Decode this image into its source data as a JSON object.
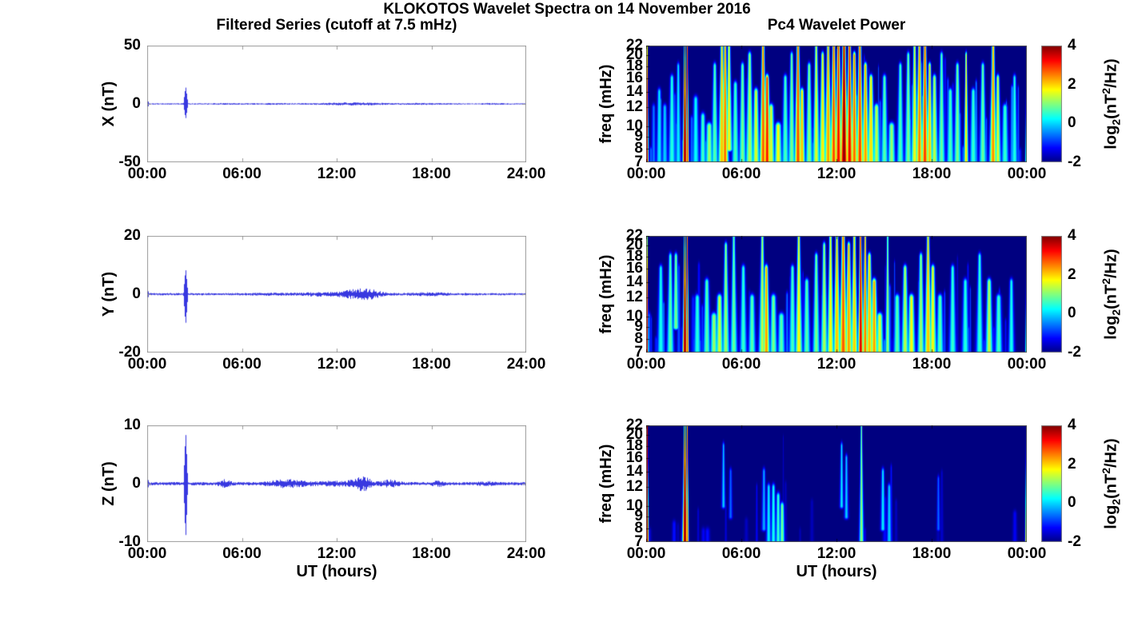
{
  "figure": {
    "title": "KLOKOTOS Wavelet Spectra on 14 November 2016",
    "left_subtitle": "Filtered Series (cutoff at 7.5 mHz)",
    "right_subtitle": "Pc4 Wavelet Power",
    "xlabel": "UT (hours)",
    "background_color": "#ffffff",
    "series_line_color": "#2222dd",
    "axis_box_color": "#999999",
    "heatmap_min_color": "#00008f"
  },
  "chart_data": [
    {
      "id": "x-filtered",
      "type": "line",
      "panel": "left-top",
      "ylabel": "X (nT)",
      "ylim": [
        -50,
        50
      ],
      "yticks": [
        50,
        0,
        -50
      ],
      "x_range_hours": [
        0,
        24
      ],
      "xticks": [
        {
          "t": 0,
          "label": "00:00"
        },
        {
          "t": 6,
          "label": "06:00"
        },
        {
          "t": 12,
          "label": "12:00"
        },
        {
          "t": 18,
          "label": "18:00"
        },
        {
          "t": 24,
          "label": "24:00"
        }
      ],
      "noise_base": 0.55,
      "seed": 3,
      "noise_bumps": [
        {
          "t": 13,
          "w": 3,
          "a": 0.8
        },
        {
          "t": 8.2,
          "w": 2,
          "a": 0.25
        },
        {
          "t": 17.5,
          "w": 2,
          "a": 0.3
        },
        {
          "t": 21.8,
          "w": 1,
          "a": 0.3
        },
        {
          "t": 4.8,
          "w": 1.5,
          "a": 0.2
        }
      ],
      "spikes": [
        {
          "t": 2.42,
          "peak": 15,
          "trough": -13,
          "w": 0.3
        },
        {
          "t": 0.06,
          "peak": 2.5,
          "trough": -2.5,
          "w": 0.1
        }
      ]
    },
    {
      "id": "y-filtered",
      "type": "line",
      "panel": "left-middle",
      "ylabel": "Y (nT)",
      "ylim": [
        -20,
        20
      ],
      "yticks": [
        20,
        0,
        -20
      ],
      "x_range_hours": [
        0,
        24
      ],
      "xticks": [
        {
          "t": 0,
          "label": "00:00"
        },
        {
          "t": 6,
          "label": "06:00"
        },
        {
          "t": 12,
          "label": "12:00"
        },
        {
          "t": 18,
          "label": "18:00"
        },
        {
          "t": 24,
          "label": "24:00"
        }
      ],
      "noise_base": 0.4,
      "seed": 5,
      "noise_bumps": [
        {
          "t": 13.7,
          "w": 1.4,
          "a": 1.6
        },
        {
          "t": 12.5,
          "w": 2.5,
          "a": 0.5
        },
        {
          "t": 8,
          "w": 2,
          "a": 0.2
        },
        {
          "t": 17.8,
          "w": 2,
          "a": 0.3
        },
        {
          "t": 10.5,
          "w": 1,
          "a": 0.25
        }
      ],
      "spikes": [
        {
          "t": 2.42,
          "peak": 8.8,
          "trough": -10.5,
          "w": 0.3
        },
        {
          "t": 0.06,
          "peak": 1.2,
          "trough": -1.2,
          "w": 0.1
        }
      ]
    },
    {
      "id": "z-filtered",
      "type": "line",
      "panel": "left-bottom",
      "ylabel": "Z (nT)",
      "ylim": [
        -10,
        10
      ],
      "yticks": [
        10,
        0,
        -10
      ],
      "x_range_hours": [
        0,
        24
      ],
      "xticks": [
        {
          "t": 0,
          "label": "00:00"
        },
        {
          "t": 6,
          "label": "06:00"
        },
        {
          "t": 12,
          "label": "12:00"
        },
        {
          "t": 18,
          "label": "18:00"
        },
        {
          "t": 24,
          "label": "24:00"
        }
      ],
      "noise_base": 0.28,
      "seed": 9,
      "noise_bumps": [
        {
          "t": 4.9,
          "w": 0.5,
          "a": 0.5
        },
        {
          "t": 8.8,
          "w": 1.6,
          "a": 0.5
        },
        {
          "t": 13.6,
          "w": 0.8,
          "a": 1.0
        },
        {
          "t": 15.4,
          "w": 0.8,
          "a": 0.45
        },
        {
          "t": 12.1,
          "w": 2.5,
          "a": 0.25
        },
        {
          "t": 18.4,
          "w": 0.6,
          "a": 0.3
        },
        {
          "t": 21.5,
          "w": 0.8,
          "a": 0.2
        }
      ],
      "spikes": [
        {
          "t": 2.42,
          "peak": 9,
          "trough": -9.5,
          "w": 0.28
        },
        {
          "t": 0.06,
          "peak": 0.8,
          "trough": -0.8,
          "w": 0.08
        }
      ]
    },
    {
      "id": "x-wavelet-power",
      "type": "heatmap",
      "panel": "right-top",
      "ylabel": "freq (mHz)",
      "yscale": "log",
      "freq_range_mhz": [
        7,
        22
      ],
      "yticks": [
        22,
        20,
        18,
        16,
        14,
        12,
        10,
        9,
        8,
        7
      ],
      "x_range_hours": [
        0,
        24
      ],
      "xticks": [
        {
          "t": 0,
          "label": "00:00"
        },
        {
          "t": 6,
          "label": "06:00"
        },
        {
          "t": 12,
          "label": "12:00"
        },
        {
          "t": 18,
          "label": "18:00"
        },
        {
          "t": 24,
          "label": "00:00"
        }
      ],
      "clim": [
        -2,
        4
      ],
      "colormap": "jet",
      "colorbar": {
        "ticks": [
          4,
          2,
          0,
          -2
        ],
        "label_pre": "log",
        "label_sub": "2",
        "label_mid": "(nT",
        "label_sup": "2",
        "label_post": "/Hz)"
      },
      "streaks": [
        [
          0.03,
          0.12,
          7,
          22,
          3.6
        ],
        [
          0.45,
          0.2,
          7,
          12,
          -0.5
        ],
        [
          0.8,
          0.25,
          7,
          14,
          0.2
        ],
        [
          1.15,
          0.25,
          7,
          12,
          0.0
        ],
        [
          1.6,
          0.3,
          7,
          16,
          0.5
        ],
        [
          2.0,
          0.25,
          7,
          18,
          0.2
        ],
        [
          2.42,
          0.18,
          7,
          22,
          4.2
        ],
        [
          2.58,
          0.1,
          7,
          22,
          3.2
        ],
        [
          3.1,
          0.3,
          7,
          13,
          0.3
        ],
        [
          3.55,
          0.25,
          7,
          11,
          0.7
        ],
        [
          3.95,
          0.3,
          7,
          10,
          1.2
        ],
        [
          4.3,
          0.3,
          7,
          18,
          0.8
        ],
        [
          4.75,
          0.3,
          7,
          22,
          2.2
        ],
        [
          4.95,
          0.28,
          7,
          22,
          2.7
        ],
        [
          5.2,
          0.3,
          8,
          22,
          1.8
        ],
        [
          5.6,
          0.3,
          7,
          15,
          0.7
        ],
        [
          6.05,
          0.3,
          7,
          18,
          1.0
        ],
        [
          6.5,
          0.35,
          7,
          20,
          1.3
        ],
        [
          6.9,
          0.3,
          7,
          14,
          1.6
        ],
        [
          7.35,
          0.3,
          7,
          22,
          2.8
        ],
        [
          7.6,
          0.28,
          7,
          16,
          3.2
        ],
        [
          7.85,
          0.3,
          7,
          12,
          1.6
        ],
        [
          8.3,
          0.3,
          7,
          10,
          1.8
        ],
        [
          8.75,
          0.3,
          7,
          16,
          0.7
        ],
        [
          9.15,
          0.3,
          7,
          20,
          1.0
        ],
        [
          9.55,
          0.3,
          7,
          22,
          2.9
        ],
        [
          9.8,
          0.25,
          7,
          14,
          2.2
        ],
        [
          10.25,
          0.3,
          7,
          18,
          1.1
        ],
        [
          10.7,
          0.3,
          7,
          22,
          1.6
        ],
        [
          11.1,
          0.3,
          7,
          20,
          1.9
        ],
        [
          11.45,
          0.3,
          7,
          22,
          2.4
        ],
        [
          11.8,
          0.3,
          7,
          22,
          2.9
        ],
        [
          12.1,
          0.3,
          7,
          22,
          3.3
        ],
        [
          12.45,
          0.35,
          7,
          22,
          4.0
        ],
        [
          12.8,
          0.3,
          7,
          22,
          3.4
        ],
        [
          13.1,
          0.3,
          7,
          20,
          2.7
        ],
        [
          13.45,
          0.3,
          7,
          22,
          3.0
        ],
        [
          13.8,
          0.3,
          7,
          18,
          2.4
        ],
        [
          14.15,
          0.3,
          7,
          16,
          2.0
        ],
        [
          14.5,
          0.3,
          7,
          12,
          1.4
        ],
        [
          15.0,
          0.3,
          7,
          16,
          0.8
        ],
        [
          15.45,
          0.3,
          7,
          10,
          1.2
        ],
        [
          16.0,
          0.3,
          7,
          18,
          0.7
        ],
        [
          16.5,
          0.3,
          7,
          20,
          1.0
        ],
        [
          16.9,
          0.3,
          7,
          22,
          1.7
        ],
        [
          17.2,
          0.3,
          7,
          22,
          2.6
        ],
        [
          17.55,
          0.3,
          7,
          22,
          3.0
        ],
        [
          17.85,
          0.25,
          7,
          18,
          2.2
        ],
        [
          18.15,
          0.3,
          7,
          16,
          1.4
        ],
        [
          18.6,
          0.3,
          7,
          20,
          0.9
        ],
        [
          19.15,
          0.3,
          7,
          14,
          0.7
        ],
        [
          19.6,
          0.3,
          7,
          18,
          1.0
        ],
        [
          20.15,
          0.18,
          7,
          20,
          2.0
        ],
        [
          20.6,
          0.3,
          7,
          14,
          0.6
        ],
        [
          21.2,
          0.3,
          7,
          18,
          0.9
        ],
        [
          21.85,
          0.3,
          7,
          22,
          2.5
        ],
        [
          22.15,
          0.25,
          7,
          16,
          1.6
        ],
        [
          22.6,
          0.3,
          7,
          12,
          0.6
        ],
        [
          23.2,
          0.25,
          7,
          16,
          0.5
        ],
        [
          23.97,
          0.1,
          7,
          22,
          3.8
        ]
      ],
      "noise_streaks": {
        "count": 90,
        "p_min": -1.4,
        "p_max": -0.2,
        "seed": 7
      }
    },
    {
      "id": "y-wavelet-power",
      "type": "heatmap",
      "panel": "right-middle",
      "ylabel": "freq (mHz)",
      "yscale": "log",
      "freq_range_mhz": [
        7,
        22
      ],
      "yticks": [
        22,
        20,
        18,
        16,
        14,
        12,
        10,
        9,
        8,
        7
      ],
      "x_range_hours": [
        0,
        24
      ],
      "xticks": [
        {
          "t": 0,
          "label": "00:00"
        },
        {
          "t": 6,
          "label": "06:00"
        },
        {
          "t": 12,
          "label": "12:00"
        },
        {
          "t": 18,
          "label": "18:00"
        },
        {
          "t": 24,
          "label": "00:00"
        }
      ],
      "clim": [
        -2,
        4
      ],
      "colormap": "jet",
      "colorbar": {
        "ticks": [
          4,
          2,
          0,
          -2
        ],
        "label_pre": "log",
        "label_sub": "2",
        "label_mid": "(nT",
        "label_sup": "2",
        "label_post": "/Hz)"
      },
      "streaks": [
        [
          0.03,
          0.1,
          7,
          22,
          3.6
        ],
        [
          0.9,
          0.3,
          7,
          16,
          0.4
        ],
        [
          1.5,
          0.3,
          7,
          18,
          0.8
        ],
        [
          1.85,
          0.3,
          9,
          18,
          1.0
        ],
        [
          2.42,
          0.18,
          7,
          22,
          4.2
        ],
        [
          2.58,
          0.1,
          7,
          22,
          3.0
        ],
        [
          3.2,
          0.3,
          7,
          12,
          0.5
        ],
        [
          3.8,
          0.3,
          7,
          14,
          0.8
        ],
        [
          4.25,
          0.3,
          7,
          10,
          1.2
        ],
        [
          4.6,
          0.3,
          7,
          12,
          1.5
        ],
        [
          5.0,
          0.3,
          7,
          20,
          1.2
        ],
        [
          5.5,
          0.3,
          7,
          22,
          0.9
        ],
        [
          6.1,
          0.3,
          7,
          16,
          0.6
        ],
        [
          6.65,
          0.3,
          7,
          12,
          0.8
        ],
        [
          7.3,
          0.3,
          7,
          22,
          1.4
        ],
        [
          7.55,
          0.28,
          7,
          16,
          2.4
        ],
        [
          8.0,
          0.3,
          7,
          12,
          1.0
        ],
        [
          8.5,
          0.3,
          7,
          10,
          0.8
        ],
        [
          9.2,
          0.3,
          7,
          16,
          0.7
        ],
        [
          9.6,
          0.3,
          7,
          22,
          1.8
        ],
        [
          10.1,
          0.3,
          7,
          14,
          0.8
        ],
        [
          10.7,
          0.3,
          7,
          18,
          1.0
        ],
        [
          11.2,
          0.3,
          7,
          20,
          1.3
        ],
        [
          11.6,
          0.3,
          7,
          22,
          1.8
        ],
        [
          12.0,
          0.3,
          7,
          22,
          2.2
        ],
        [
          12.4,
          0.35,
          7,
          22,
          2.8
        ],
        [
          12.75,
          0.3,
          7,
          20,
          2.4
        ],
        [
          13.1,
          0.3,
          7,
          22,
          2.1
        ],
        [
          13.5,
          0.22,
          7,
          22,
          3.6
        ],
        [
          13.78,
          0.22,
          7,
          22,
          2.7
        ],
        [
          14.05,
          0.3,
          7,
          18,
          2.2
        ],
        [
          14.35,
          0.3,
          7,
          14,
          2.4
        ],
        [
          14.7,
          0.3,
          7,
          10,
          1.6
        ],
        [
          15.2,
          0.2,
          7,
          22,
          1.2
        ],
        [
          15.8,
          0.3,
          7,
          12,
          0.8
        ],
        [
          16.3,
          0.3,
          7,
          16,
          1.4
        ],
        [
          16.7,
          0.3,
          7,
          12,
          1.8
        ],
        [
          17.3,
          0.3,
          7,
          18,
          1.2
        ],
        [
          17.75,
          0.3,
          7,
          22,
          2.2
        ],
        [
          18.05,
          0.3,
          7,
          16,
          1.8
        ],
        [
          18.5,
          0.3,
          7,
          12,
          0.8
        ],
        [
          19.3,
          0.3,
          7,
          16,
          0.6
        ],
        [
          20.1,
          0.3,
          7,
          14,
          0.5
        ],
        [
          21.0,
          0.3,
          7,
          18,
          0.6
        ],
        [
          21.6,
          0.3,
          7,
          14,
          1.4
        ],
        [
          22.2,
          0.3,
          7,
          12,
          0.7
        ],
        [
          23.0,
          0.25,
          7,
          14,
          0.4
        ],
        [
          23.97,
          0.1,
          7,
          22,
          3.8
        ]
      ],
      "noise_streaks": {
        "count": 75,
        "p_min": -1.5,
        "p_max": -0.4,
        "seed": 11
      }
    },
    {
      "id": "z-wavelet-power",
      "type": "heatmap",
      "panel": "right-bottom",
      "ylabel": "freq (mHz)",
      "yscale": "log",
      "freq_range_mhz": [
        7,
        22
      ],
      "yticks": [
        22,
        20,
        18,
        16,
        14,
        12,
        10,
        9,
        8,
        7
      ],
      "x_range_hours": [
        0,
        24
      ],
      "xticks": [
        {
          "t": 0,
          "label": "00:00"
        },
        {
          "t": 6,
          "label": "06:00"
        },
        {
          "t": 12,
          "label": "12:00"
        },
        {
          "t": 18,
          "label": "18:00"
        },
        {
          "t": 24,
          "label": "00:00"
        }
      ],
      "clim": [
        -2,
        4
      ],
      "colormap": "jet",
      "colorbar": {
        "ticks": [
          4,
          2,
          0,
          -2
        ],
        "label_pre": "log",
        "label_sub": "2",
        "label_mid": "(nT",
        "label_sup": "2",
        "label_post": "/Hz)"
      },
      "streaks": [
        [
          0.05,
          0.1,
          7,
          22,
          3.6
        ],
        [
          2.42,
          0.2,
          7,
          22,
          4.2
        ],
        [
          2.58,
          0.08,
          7,
          22,
          2.8
        ],
        [
          4.85,
          0.2,
          10,
          18,
          0.0
        ],
        [
          5.3,
          0.18,
          9,
          14,
          -0.6
        ],
        [
          7.4,
          0.2,
          8,
          14,
          -0.2
        ],
        [
          7.7,
          0.2,
          7,
          12,
          0.2
        ],
        [
          8.0,
          0.2,
          7,
          12,
          0.4
        ],
        [
          8.3,
          0.2,
          7,
          11,
          0.6
        ],
        [
          8.55,
          0.2,
          7,
          10,
          1.0
        ],
        [
          12.3,
          0.2,
          10,
          18,
          0.2
        ],
        [
          12.6,
          0.2,
          9,
          16,
          0.0
        ],
        [
          13.55,
          0.18,
          7,
          22,
          1.2
        ],
        [
          14.9,
          0.2,
          8,
          14,
          0.2
        ],
        [
          15.3,
          0.2,
          7,
          12,
          0.0
        ],
        [
          18.4,
          0.15,
          8,
          13,
          -0.6
        ],
        [
          23.95,
          0.1,
          7,
          22,
          3.4
        ]
      ],
      "noise_streaks": {
        "count": 22,
        "p_min": -1.7,
        "p_max": -1.1,
        "seed": 13
      }
    }
  ]
}
